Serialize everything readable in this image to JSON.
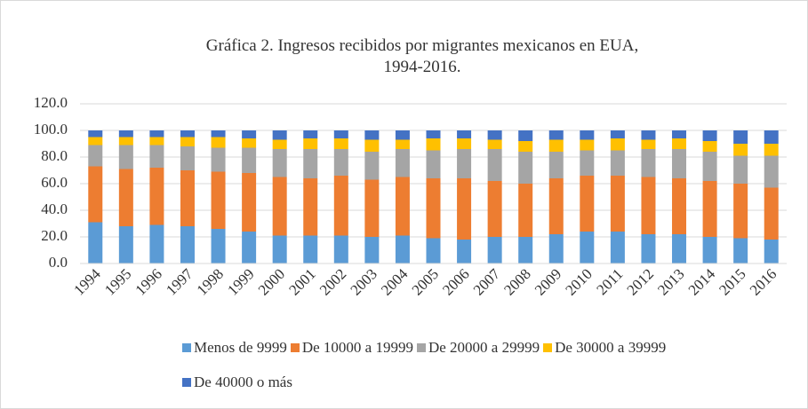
{
  "chart_data": {
    "type": "stacked_bar",
    "title": "Gráfica 2. Ingresos recibidos por migrantes mexicanos en EUA, 1994-2016.",
    "categories": [
      "1994",
      "1995",
      "1996",
      "1997",
      "1998",
      "1999",
      "2000",
      "2001",
      "2002",
      "2003",
      "2004",
      "2005",
      "2006",
      "2007",
      "2008",
      "2009",
      "2010",
      "2011",
      "2012",
      "2013",
      "2014",
      "2015",
      "2016"
    ],
    "series": [
      {
        "name": "Menos de 9999",
        "color": "#5b9bd5",
        "values": [
          31,
          28,
          29,
          28,
          26,
          24,
          21,
          21,
          21,
          20,
          21,
          19,
          18,
          20,
          20,
          22,
          24,
          24,
          22,
          22,
          20,
          19,
          18
        ]
      },
      {
        "name": "De 10000 a 19999",
        "color": "#ed7d31",
        "values": [
          42,
          43,
          43,
          42,
          43,
          44,
          44,
          43,
          45,
          43,
          44,
          45,
          46,
          42,
          40,
          42,
          42,
          42,
          43,
          42,
          42,
          41,
          39
        ]
      },
      {
        "name": "De 20000 a 29999",
        "color": "#a5a5a5",
        "values": [
          16,
          18,
          17,
          18,
          18,
          19,
          21,
          22,
          20,
          21,
          21,
          21,
          22,
          24,
          24,
          20,
          19,
          19,
          21,
          22,
          22,
          21,
          24
        ]
      },
      {
        "name": "De 30000 a 39999",
        "color": "#ffc000",
        "values": [
          6,
          6,
          6,
          7,
          8,
          7,
          7,
          8,
          8,
          9,
          7,
          9,
          8,
          7,
          8,
          9,
          8,
          9,
          7,
          8,
          8,
          9,
          9
        ]
      },
      {
        "name": "De 40000 o más",
        "color": "#4472c4",
        "values": [
          5,
          5,
          5,
          5,
          5,
          6,
          7,
          6,
          6,
          7,
          7,
          6,
          6,
          7,
          8,
          7,
          7,
          6,
          7,
          6,
          8,
          10,
          10
        ]
      }
    ],
    "ylim": [
      0,
      120
    ],
    "yticks": [
      {
        "value": 0,
        "label": "0.0"
      },
      {
        "value": 20,
        "label": "20.0"
      },
      {
        "value": 40,
        "label": "40.0"
      },
      {
        "value": 60,
        "label": "60.0"
      },
      {
        "value": 80,
        "label": "80.0"
      },
      {
        "value": 100,
        "label": "100.0"
      },
      {
        "value": 120,
        "label": "120.0"
      }
    ],
    "grid": true,
    "legend": "bottom"
  }
}
